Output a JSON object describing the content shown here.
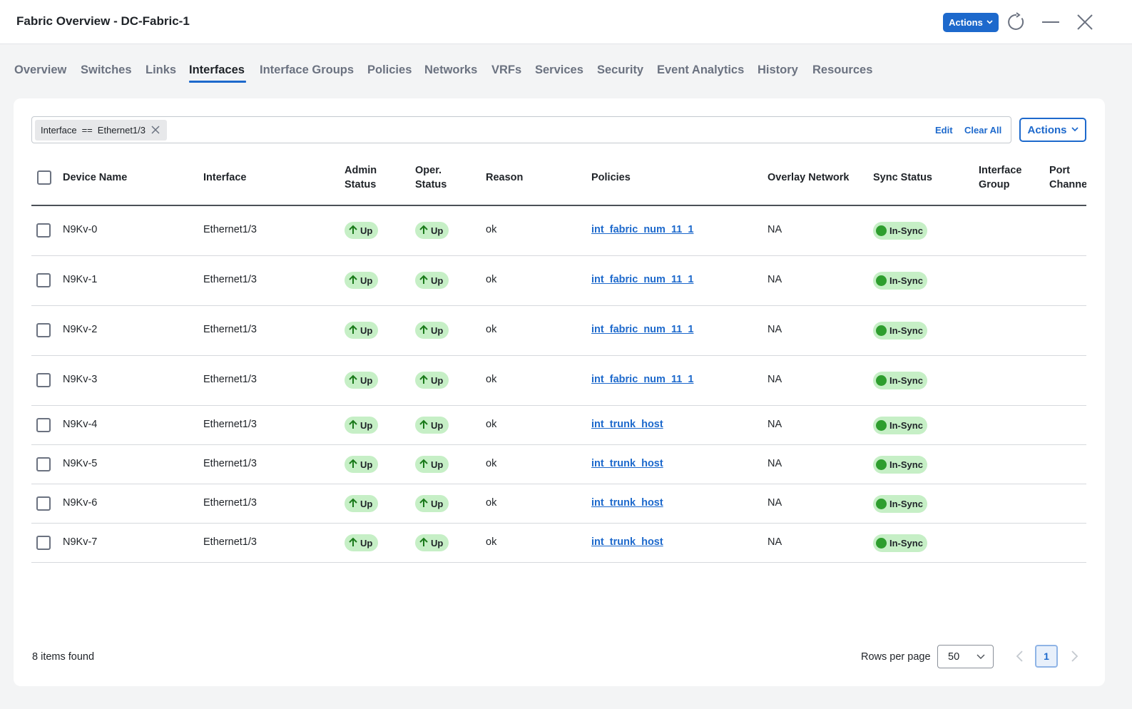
{
  "window": {
    "title": "Fabric Overview - DC-Fabric-1",
    "actions_label": "Actions"
  },
  "tabs": [
    {
      "label": "Overview"
    },
    {
      "label": "Switches"
    },
    {
      "label": "Links"
    },
    {
      "label": "Interfaces",
      "active": true
    },
    {
      "label": "Interface Groups"
    },
    {
      "label": "Policies"
    },
    {
      "label": "Networks"
    },
    {
      "label": "VRFs"
    },
    {
      "label": "Services"
    },
    {
      "label": "Security"
    },
    {
      "label": "Event Analytics"
    },
    {
      "label": "History"
    },
    {
      "label": "Resources"
    }
  ],
  "filter": {
    "field": "Interface",
    "operator": "==",
    "value": "Ethernet1/3",
    "edit_label": "Edit",
    "clear_label": "Clear All",
    "actions_label": "Actions"
  },
  "table": {
    "headers": {
      "device": "Device Name",
      "interface": "Interface",
      "admin_1": "Admin",
      "admin_2": "Status",
      "oper_1": "Oper.",
      "oper_2": "Status",
      "reason": "Reason",
      "policies": "Policies",
      "overlay": "Overlay Network",
      "sync": "Sync Status",
      "ig_1": "Interface",
      "ig_2": "Group",
      "pc_1": "Port",
      "pc_2": "Channe"
    },
    "rows": [
      {
        "device": "N9Kv-0",
        "interface": "Ethernet1/3",
        "admin": "Up",
        "oper": "Up",
        "reason": "ok",
        "policy": "int_fabric_num_11_1",
        "overlay": "NA",
        "sync": "In-Sync"
      },
      {
        "device": "N9Kv-1",
        "interface": "Ethernet1/3",
        "admin": "Up",
        "oper": "Up",
        "reason": "ok",
        "policy": "int_fabric_num_11_1",
        "overlay": "NA",
        "sync": "In-Sync"
      },
      {
        "device": "N9Kv-2",
        "interface": "Ethernet1/3",
        "admin": "Up",
        "oper": "Up",
        "reason": "ok",
        "policy": "int_fabric_num_11_1",
        "overlay": "NA",
        "sync": "In-Sync"
      },
      {
        "device": "N9Kv-3",
        "interface": "Ethernet1/3",
        "admin": "Up",
        "oper": "Up",
        "reason": "ok",
        "policy": "int_fabric_num_11_1",
        "overlay": "NA",
        "sync": "In-Sync"
      },
      {
        "device": "N9Kv-4",
        "interface": "Ethernet1/3",
        "admin": "Up",
        "oper": "Up",
        "reason": "ok",
        "policy": "int_trunk_host",
        "overlay": "NA",
        "sync": "In-Sync"
      },
      {
        "device": "N9Kv-5",
        "interface": "Ethernet1/3",
        "admin": "Up",
        "oper": "Up",
        "reason": "ok",
        "policy": "int_trunk_host",
        "overlay": "NA",
        "sync": "In-Sync"
      },
      {
        "device": "N9Kv-6",
        "interface": "Ethernet1/3",
        "admin": "Up",
        "oper": "Up",
        "reason": "ok",
        "policy": "int_trunk_host",
        "overlay": "NA",
        "sync": "In-Sync"
      },
      {
        "device": "N9Kv-7",
        "interface": "Ethernet1/3",
        "admin": "Up",
        "oper": "Up",
        "reason": "ok",
        "policy": "int_trunk_host",
        "overlay": "NA",
        "sync": "In-Sync"
      }
    ]
  },
  "footer": {
    "items_found": "8 items found",
    "rows_per_page_label": "Rows per page",
    "rows_per_page_value": "50",
    "current_page": "1"
  },
  "colors": {
    "accent": "#1d69cc",
    "status_up_bg": "#c6efc6",
    "sync_dot": "#2e9e2e"
  },
  "icons": {
    "refresh": "refresh-icon",
    "minimize": "minimize-icon",
    "close": "close-icon",
    "status_up": "arrow-up-icon",
    "sync": "status-dot-icon"
  }
}
